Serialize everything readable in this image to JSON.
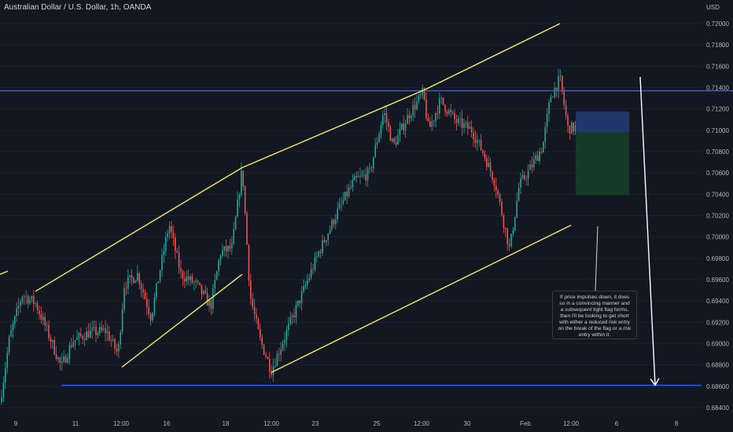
{
  "header": {
    "title": "Australian Dollar / U.S. Dollar, 1h, OANDA"
  },
  "note": {
    "text": "If price impulses down, it does so in a convincing manner and a subsequent tight flag forms, then I'll be looking to get short with either a reduced risk entry on the break of the flag or a risk entry within it."
  },
  "chart_data": {
    "type": "candlestick",
    "instrument": "Australian Dollar / U.S. Dollar",
    "timeframe": "1h",
    "source": "OANDA",
    "y_axis_label": "USD",
    "ylim": [
      0.683,
      0.7215
    ],
    "y_ticks": [
      "0.72000",
      "0.71800",
      "0.71600",
      "0.71400",
      "0.71200",
      "0.71000",
      "0.70800",
      "0.70600",
      "0.70400",
      "0.70200",
      "0.70000",
      "0.69800",
      "0.69600",
      "0.69400",
      "0.69200",
      "0.69000",
      "0.68800",
      "0.68600",
      "0.68400"
    ],
    "x_ticks": [
      "9",
      "11",
      "12:00",
      "16",
      "18",
      "12:00",
      "23",
      "25",
      "12:00",
      "30",
      "Feb",
      "12:00",
      "6",
      "8"
    ],
    "colors": {
      "background": "#131722",
      "up": "#26a69a",
      "down": "#ef5350",
      "channel": "#f5f05a",
      "level": "#2962ff",
      "arrow": "#ffffff",
      "stop_zone": "#22396e",
      "target_zone": "#173c28"
    },
    "price_path": [
      [
        0,
        0.6845
      ],
      [
        12,
        0.6905
      ],
      [
        28,
        0.6946
      ],
      [
        45,
        0.6938
      ],
      [
        60,
        0.6912
      ],
      [
        78,
        0.6878
      ],
      [
        92,
        0.6902
      ],
      [
        112,
        0.691
      ],
      [
        135,
        0.6912
      ],
      [
        150,
        0.689
      ],
      [
        158,
        0.6955
      ],
      [
        175,
        0.6965
      ],
      [
        192,
        0.6925
      ],
      [
        205,
        0.6975
      ],
      [
        215,
        0.7012
      ],
      [
        230,
        0.6965
      ],
      [
        250,
        0.6955
      ],
      [
        268,
        0.6935
      ],
      [
        280,
        0.6985
      ],
      [
        295,
        0.699
      ],
      [
        308,
        0.7065
      ],
      [
        318,
        0.6945
      ],
      [
        330,
        0.6905
      ],
      [
        345,
        0.6875
      ],
      [
        365,
        0.6912
      ],
      [
        385,
        0.6948
      ],
      [
        405,
        0.6985
      ],
      [
        430,
        0.7025
      ],
      [
        450,
        0.7052
      ],
      [
        470,
        0.706
      ],
      [
        488,
        0.7118
      ],
      [
        500,
        0.7085
      ],
      [
        520,
        0.7115
      ],
      [
        538,
        0.7135
      ],
      [
        545,
        0.71
      ],
      [
        560,
        0.7128
      ],
      [
        580,
        0.7108
      ],
      [
        600,
        0.71
      ],
      [
        615,
        0.7078
      ],
      [
        630,
        0.705
      ],
      [
        648,
        0.6988
      ],
      [
        660,
        0.7048
      ],
      [
        675,
        0.7065
      ],
      [
        690,
        0.7085
      ],
      [
        700,
        0.7132
      ],
      [
        712,
        0.7148
      ],
      [
        722,
        0.7102
      ],
      [
        732,
        0.7102
      ]
    ],
    "annotations": {
      "horizontal_levels": [
        {
          "name": "resistance",
          "price": 0.7137,
          "x_range": [
            0,
            932
          ]
        },
        {
          "name": "support",
          "price": 0.6861,
          "x_range": [
            78,
            892
          ]
        }
      ],
      "lower_channel": {
        "upper": [
          [
            45,
            0.6949
          ],
          [
            308,
            0.7065
          ],
          [
            540,
            0.7138
          ],
          [
            712,
            0.72
          ]
        ],
        "lower": [
          [
            155,
            0.6878
          ],
          [
            308,
            0.6954
          ],
          [
            345,
            0.6873
          ],
          [
            726,
            0.7011
          ]
        ]
      },
      "trade_box": {
        "stop_zone": {
          "top": 0.71175,
          "bottom": 0.7098
        },
        "target_zone": {
          "top": 0.7098,
          "bottom": 0.7039
        }
      },
      "projection_arrow": {
        "from": [
          814,
          0.715
        ],
        "to": [
          833,
          0.6861
        ]
      }
    }
  }
}
